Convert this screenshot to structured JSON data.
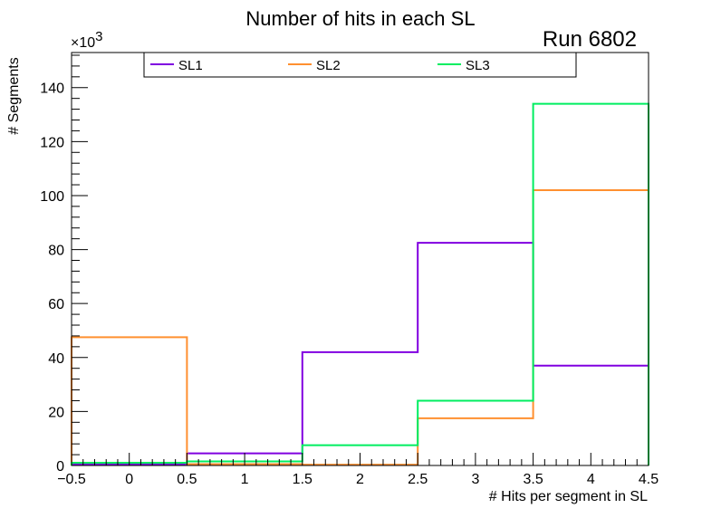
{
  "chart_data": {
    "type": "histogram-step",
    "title": "Number of hits in each SL",
    "annotation": "Run 6802",
    "xlabel": "# Hits per segment in SL",
    "ylabel": "# Segments",
    "y_multiplier_label": "×10",
    "y_multiplier_exponent": "3",
    "xlim": [
      -0.5,
      4.5
    ],
    "ylim": [
      0,
      153
    ],
    "x_ticks": [
      -0.5,
      0,
      0.5,
      1,
      1.5,
      2,
      2.5,
      3,
      3.5,
      4,
      4.5
    ],
    "x_tick_labels": [
      "−0.5",
      "0",
      "0.5",
      "1",
      "1.5",
      "2",
      "2.5",
      "3",
      "3.5",
      "4",
      "4.5"
    ],
    "y_ticks": [
      0,
      20,
      40,
      60,
      80,
      100,
      120,
      140
    ],
    "y_tick_labels": [
      "0",
      "20",
      "40",
      "60",
      "80",
      "100",
      "120",
      "140"
    ],
    "bin_edges": [
      -0.5,
      0.5,
      1.5,
      2.5,
      3.5,
      4.5
    ],
    "series": [
      {
        "name": "SL1",
        "color": "#8000e0",
        "values": [
          0.5,
          4.5,
          42,
          82.5,
          37
        ]
      },
      {
        "name": "SL2",
        "color": "#ff9030",
        "values": [
          47.5,
          0.5,
          0.3,
          17.5,
          102
        ]
      },
      {
        "name": "SL3",
        "color": "#00ee60",
        "values": [
          1,
          1.5,
          7.5,
          24,
          134
        ]
      }
    ]
  }
}
